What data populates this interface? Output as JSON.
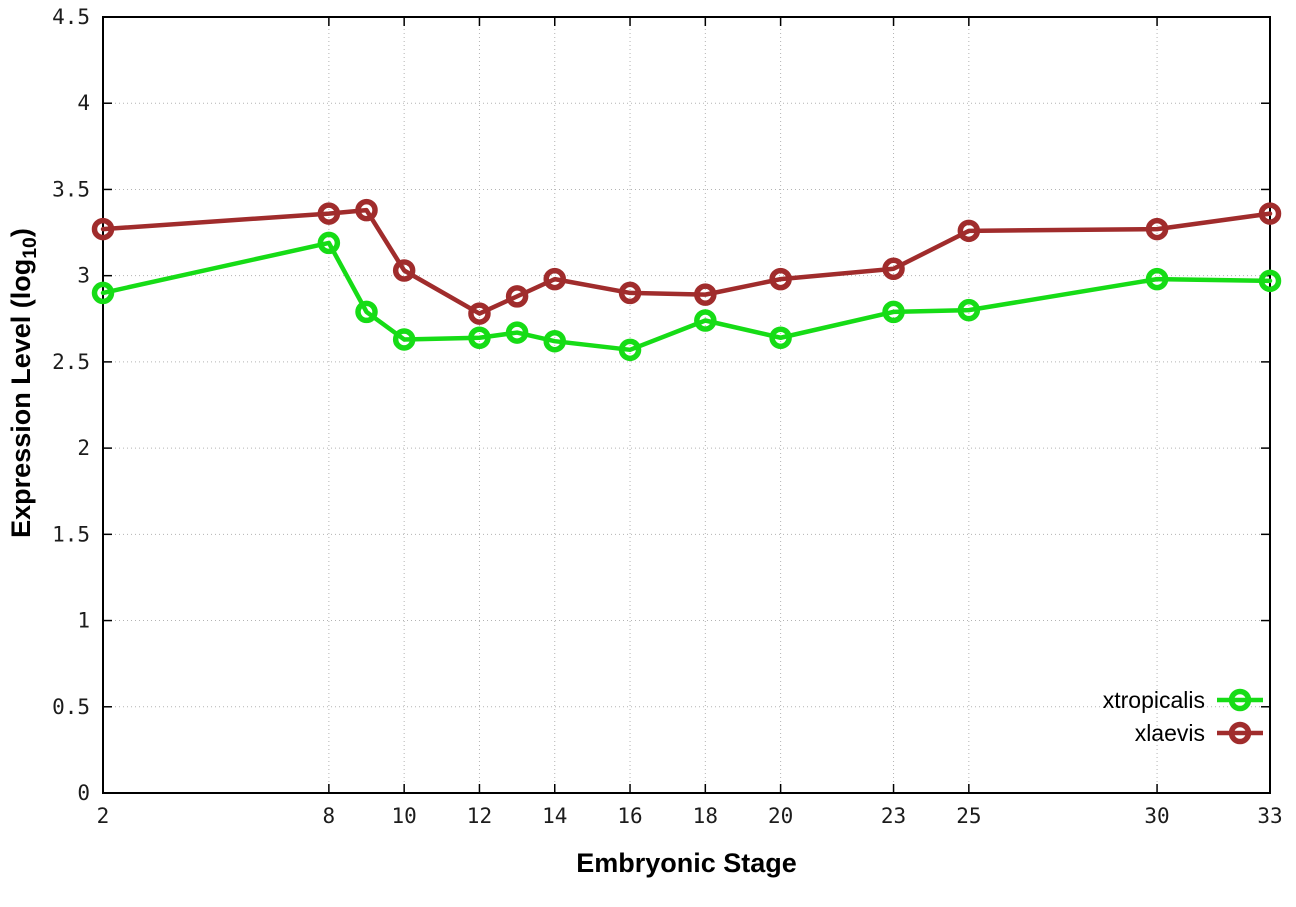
{
  "figure": {
    "background": "#ffffff",
    "border_color": "#000000",
    "grid_color": "#b3b3b3",
    "tick_label_color": "#1c1c1c"
  },
  "chart_data": {
    "type": "line",
    "title": "",
    "xlabel": "Embryonic Stage",
    "ylabel": {
      "text": "Expression Level (log",
      "sub": "10",
      "suffix": ")"
    },
    "xlim": [
      2,
      33
    ],
    "ylim": [
      0,
      4.5
    ],
    "grid": true,
    "legend_position": "bottom-right",
    "x": [
      2,
      8,
      9,
      10,
      12,
      13,
      14,
      16,
      18,
      20,
      23,
      25,
      30,
      33
    ],
    "xticks": [
      2,
      8,
      10,
      12,
      14,
      16,
      18,
      20,
      23,
      25,
      30,
      33
    ],
    "yticks": [
      0,
      0.5,
      1,
      1.5,
      2,
      2.5,
      3,
      3.5,
      4,
      4.5
    ],
    "ytick_labels": [
      "0",
      "0.5",
      "1",
      "1.5",
      "2",
      "2.5",
      "3",
      "3.5",
      "4",
      "4.5"
    ],
    "series": [
      {
        "name": "xtropicalis",
        "color": "#16dc16",
        "values": [
          2.9,
          3.19,
          2.79,
          2.63,
          2.64,
          2.67,
          2.62,
          2.57,
          2.74,
          2.64,
          2.79,
          2.8,
          2.98,
          2.97
        ]
      },
      {
        "name": "xlaevis",
        "color": "#a02c2c",
        "values": [
          3.27,
          3.36,
          3.38,
          3.03,
          2.78,
          2.88,
          2.98,
          2.9,
          2.89,
          2.98,
          3.04,
          3.26,
          3.27,
          3.36
        ]
      }
    ]
  }
}
